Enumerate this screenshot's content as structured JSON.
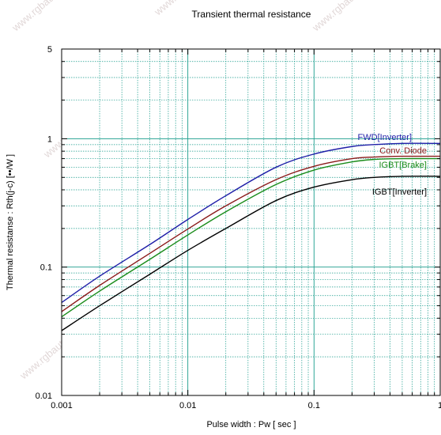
{
  "chart_data": {
    "type": "line",
    "title": "Transient thermal resistance",
    "xlabel": "Pulse width  :  Pw  [ sec ]",
    "ylabel": "Thermal resistanse  :  Rth(j-c)  [••/W ]",
    "xscale": "log",
    "yscale": "log",
    "xlim": [
      0.001,
      1
    ],
    "ylim": [
      0.01,
      5
    ],
    "x_ticks": [
      {
        "value": 0.001,
        "label": "0.001"
      },
      {
        "value": 0.01,
        "label": "0.01"
      },
      {
        "value": 0.1,
        "label": "0.1"
      },
      {
        "value": 1,
        "label": "1"
      }
    ],
    "y_ticks": [
      {
        "value": 0.01,
        "label": "0.01"
      },
      {
        "value": 0.1,
        "label": "0.1"
      },
      {
        "value": 1,
        "label": "1"
      },
      {
        "value": 5,
        "label": "5"
      }
    ],
    "grid": true,
    "grid_color": "#1a9c8c",
    "series": [
      {
        "name": "FWD[Inverter]",
        "color": "#1f1fa8",
        "x": [
          0.001,
          0.002,
          0.005,
          0.01,
          0.02,
          0.05,
          0.1,
          0.2,
          0.3,
          0.5,
          1
        ],
        "y": [
          0.053,
          0.085,
          0.15,
          0.235,
          0.36,
          0.6,
          0.76,
          0.87,
          0.9,
          0.92,
          0.92
        ]
      },
      {
        "name": "Conv. Diode",
        "color": "#8b1a1a",
        "x": [
          0.001,
          0.002,
          0.005,
          0.01,
          0.02,
          0.05,
          0.1,
          0.2,
          0.3,
          0.5,
          1
        ],
        "y": [
          0.045,
          0.072,
          0.128,
          0.198,
          0.3,
          0.48,
          0.61,
          0.7,
          0.72,
          0.73,
          0.73
        ]
      },
      {
        "name": "IGBT[Brake]",
        "color": "#1a8c1a",
        "x": [
          0.001,
          0.002,
          0.005,
          0.01,
          0.02,
          0.05,
          0.1,
          0.2,
          0.3,
          0.5,
          1
        ],
        "y": [
          0.041,
          0.065,
          0.115,
          0.178,
          0.27,
          0.44,
          0.57,
          0.66,
          0.69,
          0.7,
          0.7
        ]
      },
      {
        "name": "IGBT[Inverter]",
        "color": "#000000",
        "x": [
          0.001,
          0.002,
          0.005,
          0.01,
          0.02,
          0.05,
          0.1,
          0.2,
          0.3,
          0.5,
          1
        ],
        "y": [
          0.032,
          0.05,
          0.088,
          0.135,
          0.2,
          0.33,
          0.42,
          0.48,
          0.5,
          0.51,
          0.51
        ]
      }
    ]
  },
  "watermark": "www.rgbautomatyka.pl"
}
